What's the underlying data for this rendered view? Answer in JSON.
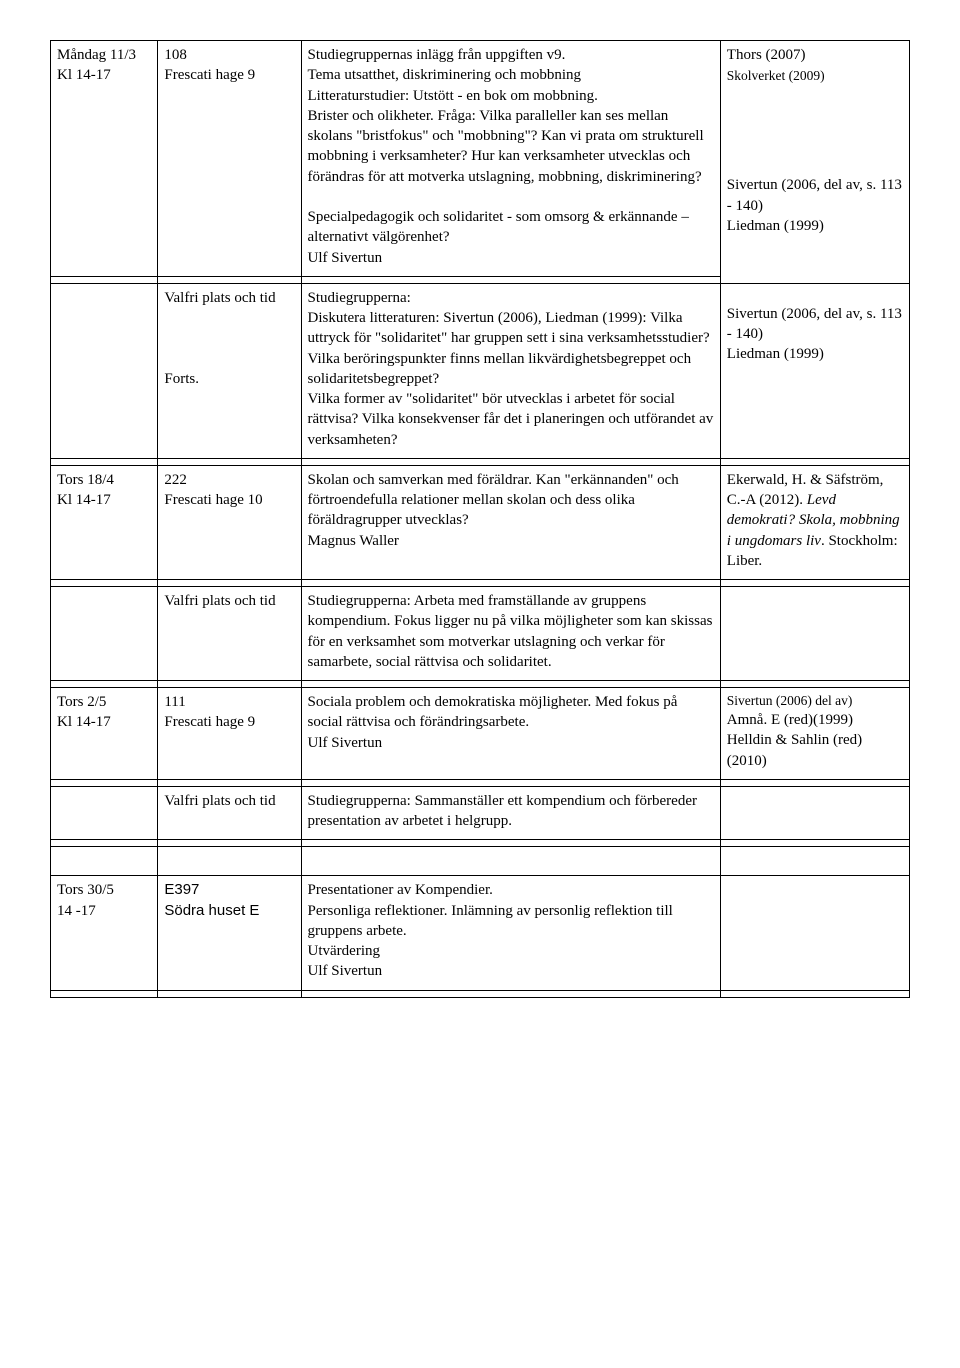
{
  "rows": {
    "r1": {
      "date": "Måndag 11/3\nKl 14-17",
      "room": "108\nFrescati hage 9",
      "desc": "Studiegruppernas inlägg från uppgiften  v9.\nTema utsatthet, diskriminering och mobbning\nLitteraturstudier: Utstött - en bok om mobbning.\nBrister och olikheter. Fråga: Vilka paralleller kan ses mellan skolans \"bristfokus\" och \"mobbning\"? Kan vi prata om strukturell mobbning i verksamheter? Hur kan verksamheter utvecklas och förändras för att motverka utslagning, mobbning, diskriminering?\n\nSpecialpedagogik och solidaritet - som omsorg & erkännande – alternativt välgörenhet?\n Ulf Sivertun",
      "lit1": "Thors (2007)",
      "lit2": "Skolverket (2009)",
      "lit3": "Sivertun (2006, del av, s. 113 - 140)\nLiedman (1999)"
    },
    "r2": {
      "room": "Valfri plats och tid\n\n\n\nForts.",
      "desc": "Studiegrupperna:\nDiskutera litteraturen: Sivertun (2006), Liedman (1999): Vilka uttryck för \"solidaritet\" har gruppen sett i sina verksamhetsstudier? Vilka beröringspunkter finns mellan likvärdighetsbegreppet och solidaritetsbegreppet?\nVilka former av \"solidaritet\" bör utvecklas i arbetet för social rättvisa? Vilka konsekvenser får det i planeringen och utförandet av verksamheten?",
      "lit": "Sivertun (2006, del av, s. 113 - 140)\nLiedman  (1999)"
    },
    "r3": {
      "date": "Tors 18/4\nKl 14-17",
      "room": "222\nFrescati hage 10",
      "desc": "Skolan och samverkan med föräldrar. Kan \"erkännanden\" och förtroendefulla relationer mellan skolan och dess olika föräldragrupper utvecklas?\nMagnus Waller",
      "lit1": "Ekerwald, H.   &  Säfström, C.-A (2012). ",
      "lit2": "Levd demokrati? Skola, mobbning i ungdomars liv",
      "lit3": ". Stockholm: Liber."
    },
    "r4": {
      "room": "Valfri plats och tid",
      "desc": "Studiegrupperna: Arbeta med framställande av gruppens kompendium. Fokus ligger nu på vilka möjligheter som kan skissas för en verksamhet som motverkar utslagning och verkar för samarbete, social rättvisa och solidaritet."
    },
    "r5": {
      "date": "Tors 2/5\nKl 14-17",
      "room": "111\nFrescati hage 9",
      "desc": "Sociala problem och demokratiska möjligheter. Med fokus på social rättvisa och förändringsarbete.\nUlf Sivertun",
      "lit1": "Sivertun (2006) del av)",
      "lit2": "Amnå. E (red)(1999)\nHelldin & Sahlin (red) (2010)"
    },
    "r6": {
      "room": "Valfri plats och tid",
      "desc": "Studiegrupperna: Sammanställer ett kompendium och förbereder presentation av arbetet i helgrupp."
    },
    "r7": {
      "date": "Tors 30/5\n14 -17",
      "room": "E397\nSödra huset E",
      "desc": "Presentationer av Kompendier.\nPersonliga reflektioner. Inlämning av personlig reflektion till gruppens arbete.\nUtvärdering\nUlf Sivertun"
    }
  }
}
